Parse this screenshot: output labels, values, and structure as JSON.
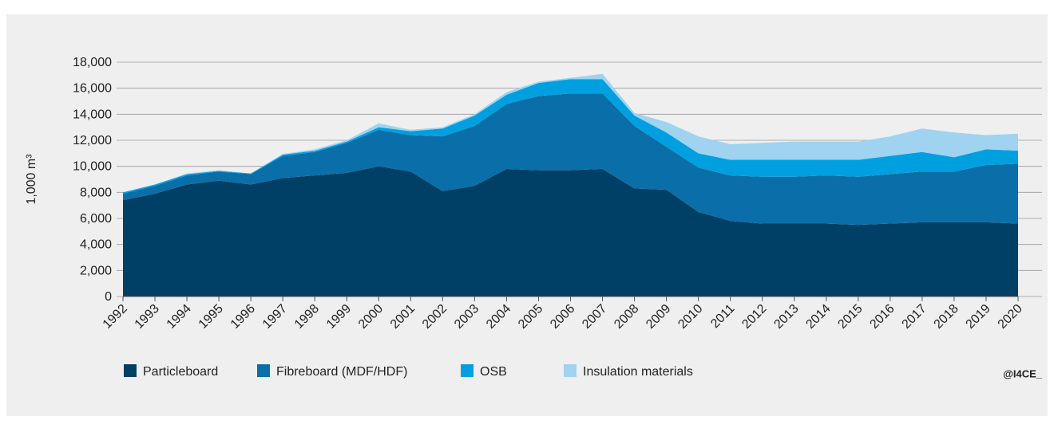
{
  "chart_data": {
    "type": "stacked_area",
    "y_label": "1,000 m³",
    "source": "@I4CE_",
    "categories": [
      "1992",
      "1993",
      "1994",
      "1995",
      "1996",
      "1997",
      "1998",
      "1999",
      "2000",
      "2001",
      "2002",
      "2003",
      "2004",
      "2005",
      "2006",
      "2007",
      "2008",
      "2009",
      "2010",
      "2011",
      "2012",
      "2013",
      "2014",
      "2015",
      "2016",
      "2017",
      "2018",
      "2019",
      "2020"
    ],
    "series": [
      {
        "name": "Particleboard",
        "color": "#003f66",
        "values": [
          7400,
          7900,
          8600,
          8900,
          8600,
          9100,
          9300,
          9500,
          10000,
          9600,
          8100,
          8500,
          9800,
          9700,
          9700,
          9800,
          8300,
          8200,
          6500,
          5800,
          5600,
          5600,
          5600,
          5500,
          5600,
          5700,
          5700,
          5700,
          5600
        ]
      },
      {
        "name": "Fibreboard (MDF/HDF)",
        "color": "#0a6fa8",
        "values": [
          500,
          600,
          700,
          700,
          800,
          1700,
          1800,
          2300,
          2800,
          2800,
          4200,
          4600,
          5000,
          5700,
          5900,
          5800,
          4800,
          3300,
          3400,
          3500,
          3600,
          3600,
          3700,
          3700,
          3800,
          3900,
          3900,
          4400,
          4600
        ]
      },
      {
        "name": "OSB",
        "color": "#00a0e0",
        "values": [
          100,
          100,
          100,
          50,
          50,
          100,
          100,
          100,
          200,
          300,
          600,
          800,
          700,
          1000,
          1100,
          1100,
          800,
          1100,
          1100,
          1200,
          1300,
          1300,
          1200,
          1300,
          1400,
          1500,
          1100,
          1200,
          1000
        ]
      },
      {
        "name": "Insulation materials",
        "color": "#9fd3ef",
        "values": [
          0,
          0,
          50,
          50,
          0,
          50,
          100,
          100,
          300,
          100,
          100,
          100,
          200,
          100,
          100,
          400,
          200,
          800,
          1300,
          1200,
          1300,
          1400,
          1400,
          1400,
          1500,
          1800,
          1900,
          1100,
          1300
        ]
      }
    ],
    "ylim": [
      0,
      18000
    ],
    "yticks": [
      0,
      {
        "value": 2000,
        "label": "2,000"
      },
      {
        "value": 4000,
        "label": "4,000"
      },
      {
        "value": 6000,
        "label": "6,000"
      },
      {
        "value": 8000,
        "label": "8,000"
      },
      {
        "value": 10000,
        "label": "10,000"
      },
      {
        "value": 12000,
        "label": "12,000"
      },
      {
        "value": 14000,
        "label": "14,000"
      },
      {
        "value": 16000,
        "label": "16,000"
      },
      {
        "value": 18000,
        "label": "18,000"
      }
    ],
    "grid": true
  }
}
